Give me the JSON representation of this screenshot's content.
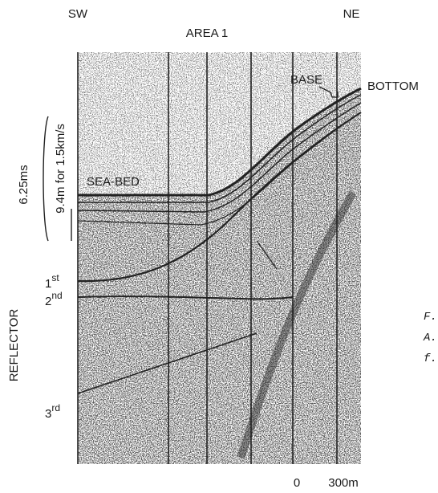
{
  "header": {
    "left": "SW",
    "right": "NE",
    "title": "AREA 1"
  },
  "labels": {
    "base": "BASE",
    "bottom": "BOTTOM",
    "seabed": "SEA-BED",
    "time_scale": "6.25ms",
    "depth_scale": "9.4m for 1.5km/s",
    "reflector": "REFLECTOR"
  },
  "reflectors": [
    {
      "number": "1",
      "suffix": "st"
    },
    {
      "number": "2",
      "suffix": "nd"
    },
    {
      "number": "3",
      "suffix": "rd"
    }
  ],
  "scale_bar": {
    "start": "0",
    "end": "300m"
  },
  "side_text": [
    "F.",
    "A.",
    "f."
  ]
}
